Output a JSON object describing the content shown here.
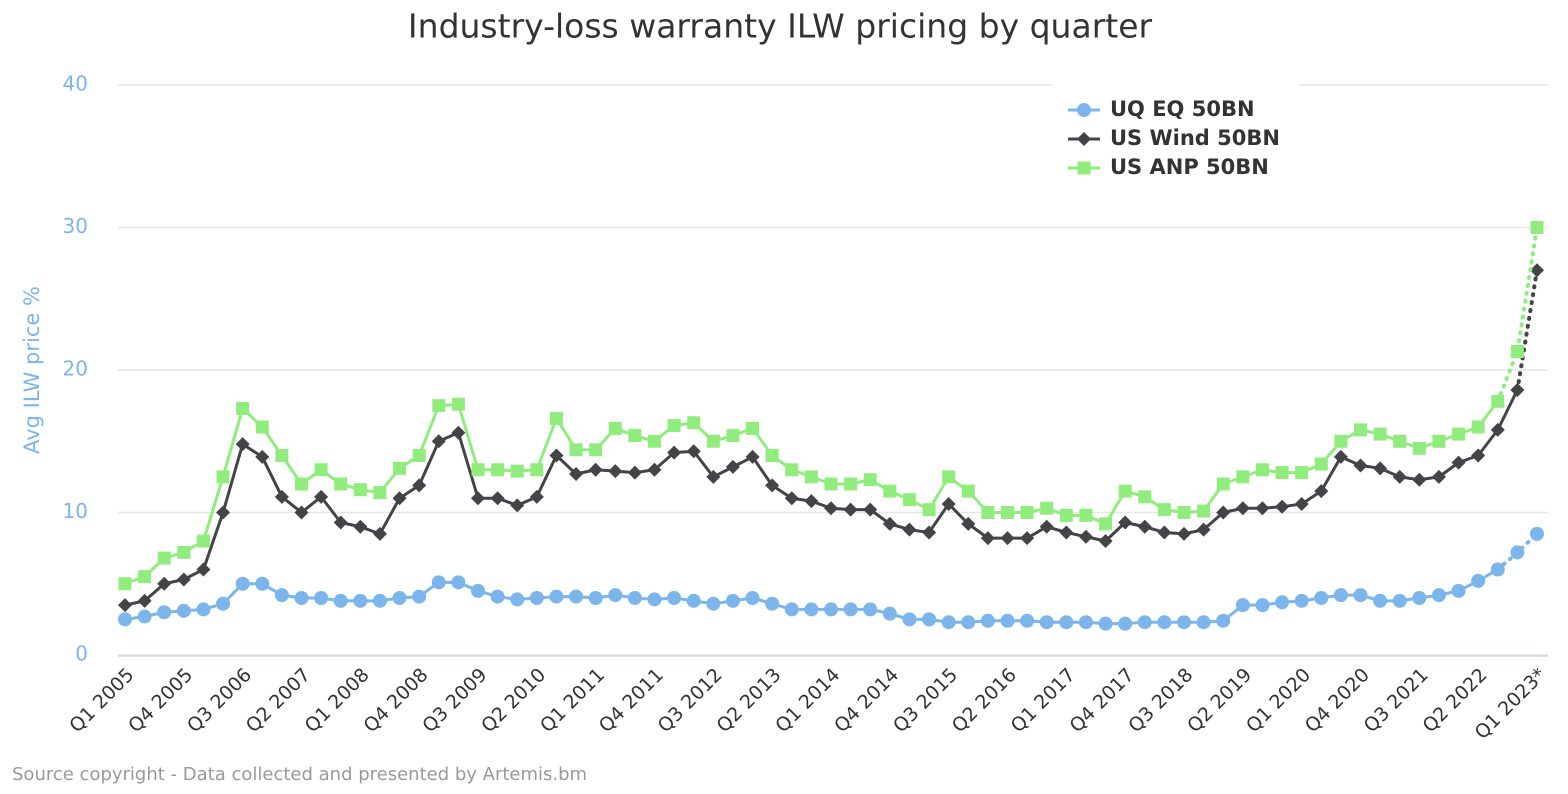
{
  "chart_data": {
    "type": "line",
    "title": "Industry-loss warranty ILW pricing by quarter",
    "y_axis_label": "Avg ILW price %",
    "source": "Source copyright - Data collected and presented by Artemis.bm",
    "categories": [
      "Q1 2005",
      null,
      null,
      "Q4 2005",
      null,
      null,
      "Q3 2006",
      null,
      null,
      "Q2 2007",
      null,
      null,
      "Q1 2008",
      null,
      null,
      "Q4 2008",
      null,
      null,
      "Q3 2009",
      null,
      null,
      "Q2 2010",
      null,
      null,
      "Q1 2011",
      null,
      null,
      "Q4 2011",
      null,
      null,
      "Q3 2012",
      null,
      null,
      "Q2 2013",
      null,
      null,
      "Q1 2014",
      null,
      null,
      "Q4 2014",
      null,
      null,
      "Q3 2015",
      null,
      null,
      "Q2 2016",
      null,
      null,
      "Q1 2017",
      null,
      null,
      "Q4 2017",
      null,
      null,
      "Q3 2018",
      null,
      null,
      "Q2 2019",
      null,
      null,
      "Q1 2020",
      null,
      null,
      "Q4 2020",
      null,
      null,
      "Q3 2021",
      null,
      null,
      "Q2 2022",
      null,
      null,
      "Q1 2023*"
    ],
    "series": [
      {
        "name": "UQ EQ 50BN",
        "color": "#7cb5ec",
        "marker": "circle",
        "dotted_from": 70,
        "values": [
          2.5,
          2.7,
          3.0,
          3.1,
          3.2,
          3.6,
          5.0,
          5.0,
          4.2,
          4.0,
          4.0,
          3.8,
          3.8,
          3.8,
          4.0,
          4.1,
          5.1,
          5.1,
          4.5,
          4.1,
          3.9,
          4.0,
          4.1,
          4.1,
          4.0,
          4.2,
          4.0,
          3.9,
          4.0,
          3.8,
          3.6,
          3.8,
          4.0,
          3.6,
          3.2,
          3.2,
          3.2,
          3.2,
          3.2,
          2.9,
          2.5,
          2.5,
          2.3,
          2.3,
          2.4,
          2.4,
          2.4,
          2.3,
          2.3,
          2.3,
          2.2,
          2.2,
          2.3,
          2.3,
          2.3,
          2.3,
          2.4,
          3.5,
          3.5,
          3.7,
          3.8,
          4.0,
          4.2,
          4.2,
          3.8,
          3.8,
          4.0,
          4.2,
          4.5,
          5.2,
          6.0,
          7.2,
          8.5
        ]
      },
      {
        "name": "US Wind 50BN",
        "color": "#434348",
        "marker": "diamond",
        "dotted_from": 71,
        "values": [
          3.5,
          3.8,
          5.0,
          5.3,
          6.0,
          10.0,
          14.8,
          13.9,
          11.1,
          10.0,
          11.1,
          9.3,
          9.0,
          8.5,
          11.0,
          11.9,
          15.0,
          15.6,
          11.0,
          11.0,
          10.5,
          11.1,
          14.0,
          12.7,
          13.0,
          12.9,
          12.8,
          13.0,
          14.2,
          14.3,
          12.5,
          13.2,
          13.9,
          11.9,
          11.0,
          10.8,
          10.3,
          10.2,
          10.2,
          9.2,
          8.8,
          8.6,
          10.6,
          9.2,
          8.2,
          8.2,
          8.2,
          9.0,
          8.6,
          8.3,
          8.0,
          9.3,
          9.0,
          8.6,
          8.5,
          8.8,
          10.0,
          10.3,
          10.3,
          10.4,
          10.6,
          11.5,
          13.9,
          13.3,
          13.1,
          12.5,
          12.3,
          12.5,
          13.5,
          14.0,
          15.8,
          18.6,
          27.0
        ]
      },
      {
        "name": "US ANP 50BN",
        "color": "#90ed7d",
        "marker": "square",
        "dotted_from": 70,
        "values": [
          5.0,
          5.5,
          6.8,
          7.2,
          8.0,
          12.5,
          17.3,
          16.0,
          14.0,
          12.0,
          13.0,
          12.0,
          11.6,
          11.4,
          13.1,
          14.0,
          17.5,
          17.6,
          13.0,
          13.0,
          12.9,
          13.0,
          16.6,
          14.4,
          14.4,
          15.9,
          15.4,
          15.0,
          16.1,
          16.3,
          15.0,
          15.4,
          15.9,
          14.0,
          13.0,
          12.5,
          12.0,
          12.0,
          12.3,
          11.5,
          10.9,
          10.2,
          12.5,
          11.5,
          10.0,
          10.0,
          10.0,
          10.3,
          9.8,
          9.8,
          9.2,
          11.5,
          11.1,
          10.2,
          10.0,
          10.1,
          12.0,
          12.5,
          13.0,
          12.8,
          12.8,
          13.4,
          15.0,
          15.8,
          15.5,
          15.0,
          14.5,
          15.0,
          15.5,
          16.0,
          17.8,
          21.3,
          30.0
        ]
      }
    ],
    "ylim": [
      0,
      40
    ],
    "yticks": [
      0,
      10,
      20,
      30,
      40
    ],
    "grid": true,
    "legend": "top-right",
    "axis_label_color": "#7cb5ec"
  }
}
